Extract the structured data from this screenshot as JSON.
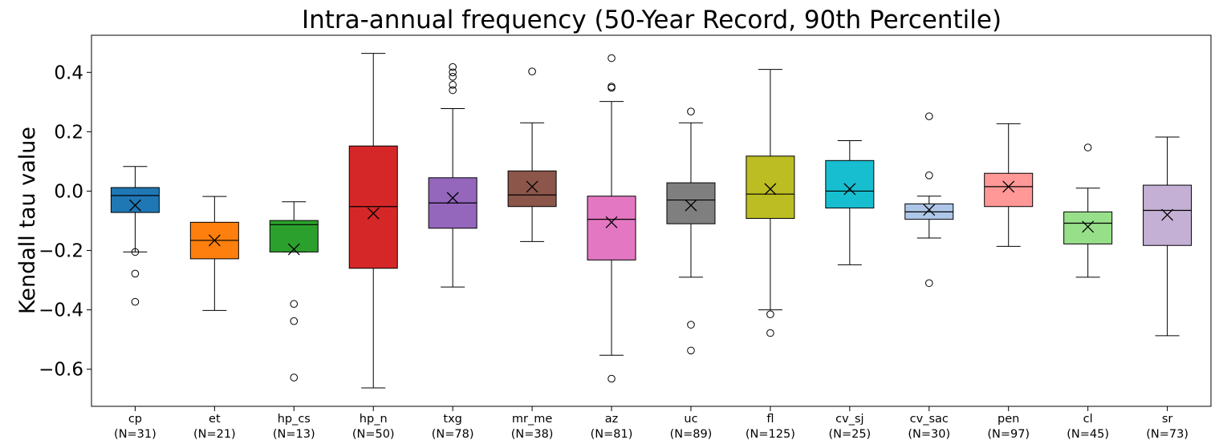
{
  "chart_data": {
    "type": "box",
    "title": "Intra-annual frequency (50-Year Record, 90th Percentile)",
    "xlabel": "",
    "ylabel": "Kendall tau value",
    "ylim": [
      -0.725,
      0.525
    ],
    "yticks": [
      -0.6,
      -0.4,
      -0.2,
      0.0,
      0.2,
      0.4
    ],
    "ytick_labels": [
      "−0.6",
      "−0.4",
      "−0.2",
      "0.0",
      "0.2",
      "0.4"
    ],
    "grid": false,
    "mean_marker": "x",
    "categories": [
      {
        "name": "cp",
        "n_label": "(N=31)",
        "color": "#1f77b4",
        "whislo": -0.205,
        "q1": -0.072,
        "med": -0.015,
        "q3": 0.012,
        "whishi": 0.083,
        "mean": -0.048,
        "fliers": [
          -0.205,
          -0.278,
          -0.373
        ]
      },
      {
        "name": "et",
        "n_label": "(N=21)",
        "color": "#ff7f0e",
        "whislo": -0.402,
        "q1": -0.228,
        "med": -0.166,
        "q3": -0.105,
        "whishi": -0.018,
        "mean": -0.166,
        "fliers": []
      },
      {
        "name": "hp_cs",
        "n_label": "(N=13)",
        "color": "#2ca02c",
        "whislo": -0.205,
        "q1": -0.205,
        "med": -0.113,
        "q3": -0.099,
        "whishi": -0.036,
        "mean": -0.196,
        "fliers": [
          -0.38,
          -0.438,
          -0.628
        ]
      },
      {
        "name": "hp_n",
        "n_label": "(N=50)",
        "color": "#d62728",
        "whislo": -0.663,
        "q1": -0.26,
        "med": -0.052,
        "q3": 0.152,
        "whishi": 0.464,
        "mean": -0.075,
        "fliers": []
      },
      {
        "name": "txg",
        "n_label": "(N=78)",
        "color": "#9467bd",
        "whislo": -0.323,
        "q1": -0.125,
        "med": -0.04,
        "q3": 0.045,
        "whishi": 0.278,
        "mean": -0.023,
        "fliers": [
          0.34,
          0.358,
          0.385,
          0.4,
          0.418
        ]
      },
      {
        "name": "mr_me",
        "n_label": "(N=38)",
        "color": "#8c564b",
        "whislo": -0.17,
        "q1": -0.052,
        "med": -0.013,
        "q3": 0.068,
        "whishi": 0.23,
        "mean": 0.015,
        "fliers": [
          0.403
        ]
      },
      {
        "name": "az",
        "n_label": "(N=81)",
        "color": "#e377c2",
        "whislo": -0.553,
        "q1": -0.232,
        "med": -0.095,
        "q3": -0.017,
        "whishi": 0.302,
        "mean": -0.105,
        "fliers": [
          -0.632,
          0.348,
          0.352,
          0.448
        ]
      },
      {
        "name": "uc",
        "n_label": "(N=89)",
        "color": "#7f7f7f",
        "whislo": -0.29,
        "q1": -0.11,
        "med": -0.03,
        "q3": 0.028,
        "whishi": 0.23,
        "mean": -0.048,
        "fliers": [
          -0.45,
          -0.537,
          0.268
        ]
      },
      {
        "name": "fl",
        "n_label": "(N=125)",
        "color": "#bcbd22",
        "whislo": -0.4,
        "q1": -0.092,
        "med": -0.01,
        "q3": 0.118,
        "whishi": 0.41,
        "mean": 0.007,
        "fliers": [
          -0.415,
          -0.478
        ]
      },
      {
        "name": "cv_sj",
        "n_label": "(N=25)",
        "color": "#17becf",
        "whislo": -0.248,
        "q1": -0.057,
        "med": 0.0,
        "q3": 0.103,
        "whishi": 0.17,
        "mean": 0.007,
        "fliers": []
      },
      {
        "name": "cv_sac",
        "n_label": "(N=30)",
        "color": "#aec7e8",
        "whislo": -0.158,
        "q1": -0.095,
        "med": -0.07,
        "q3": -0.043,
        "whishi": -0.017,
        "mean": -0.063,
        "fliers": [
          -0.31,
          0.053,
          0.252
        ]
      },
      {
        "name": "pen",
        "n_label": "(N=97)",
        "color": "#ff9896",
        "whislo": -0.186,
        "q1": -0.052,
        "med": 0.015,
        "q3": 0.06,
        "whishi": 0.227,
        "mean": 0.015,
        "fliers": []
      },
      {
        "name": "cl",
        "n_label": "(N=45)",
        "color": "#98df8a",
        "whislo": -0.29,
        "q1": -0.178,
        "med": -0.108,
        "q3": -0.07,
        "whishi": 0.01,
        "mean": -0.12,
        "fliers": [
          0.147
        ]
      },
      {
        "name": "sr",
        "n_label": "(N=73)",
        "color": "#c5b0d5",
        "whislo": -0.487,
        "q1": -0.183,
        "med": -0.065,
        "q3": 0.02,
        "whishi": 0.182,
        "mean": -0.08,
        "fliers": []
      }
    ]
  }
}
